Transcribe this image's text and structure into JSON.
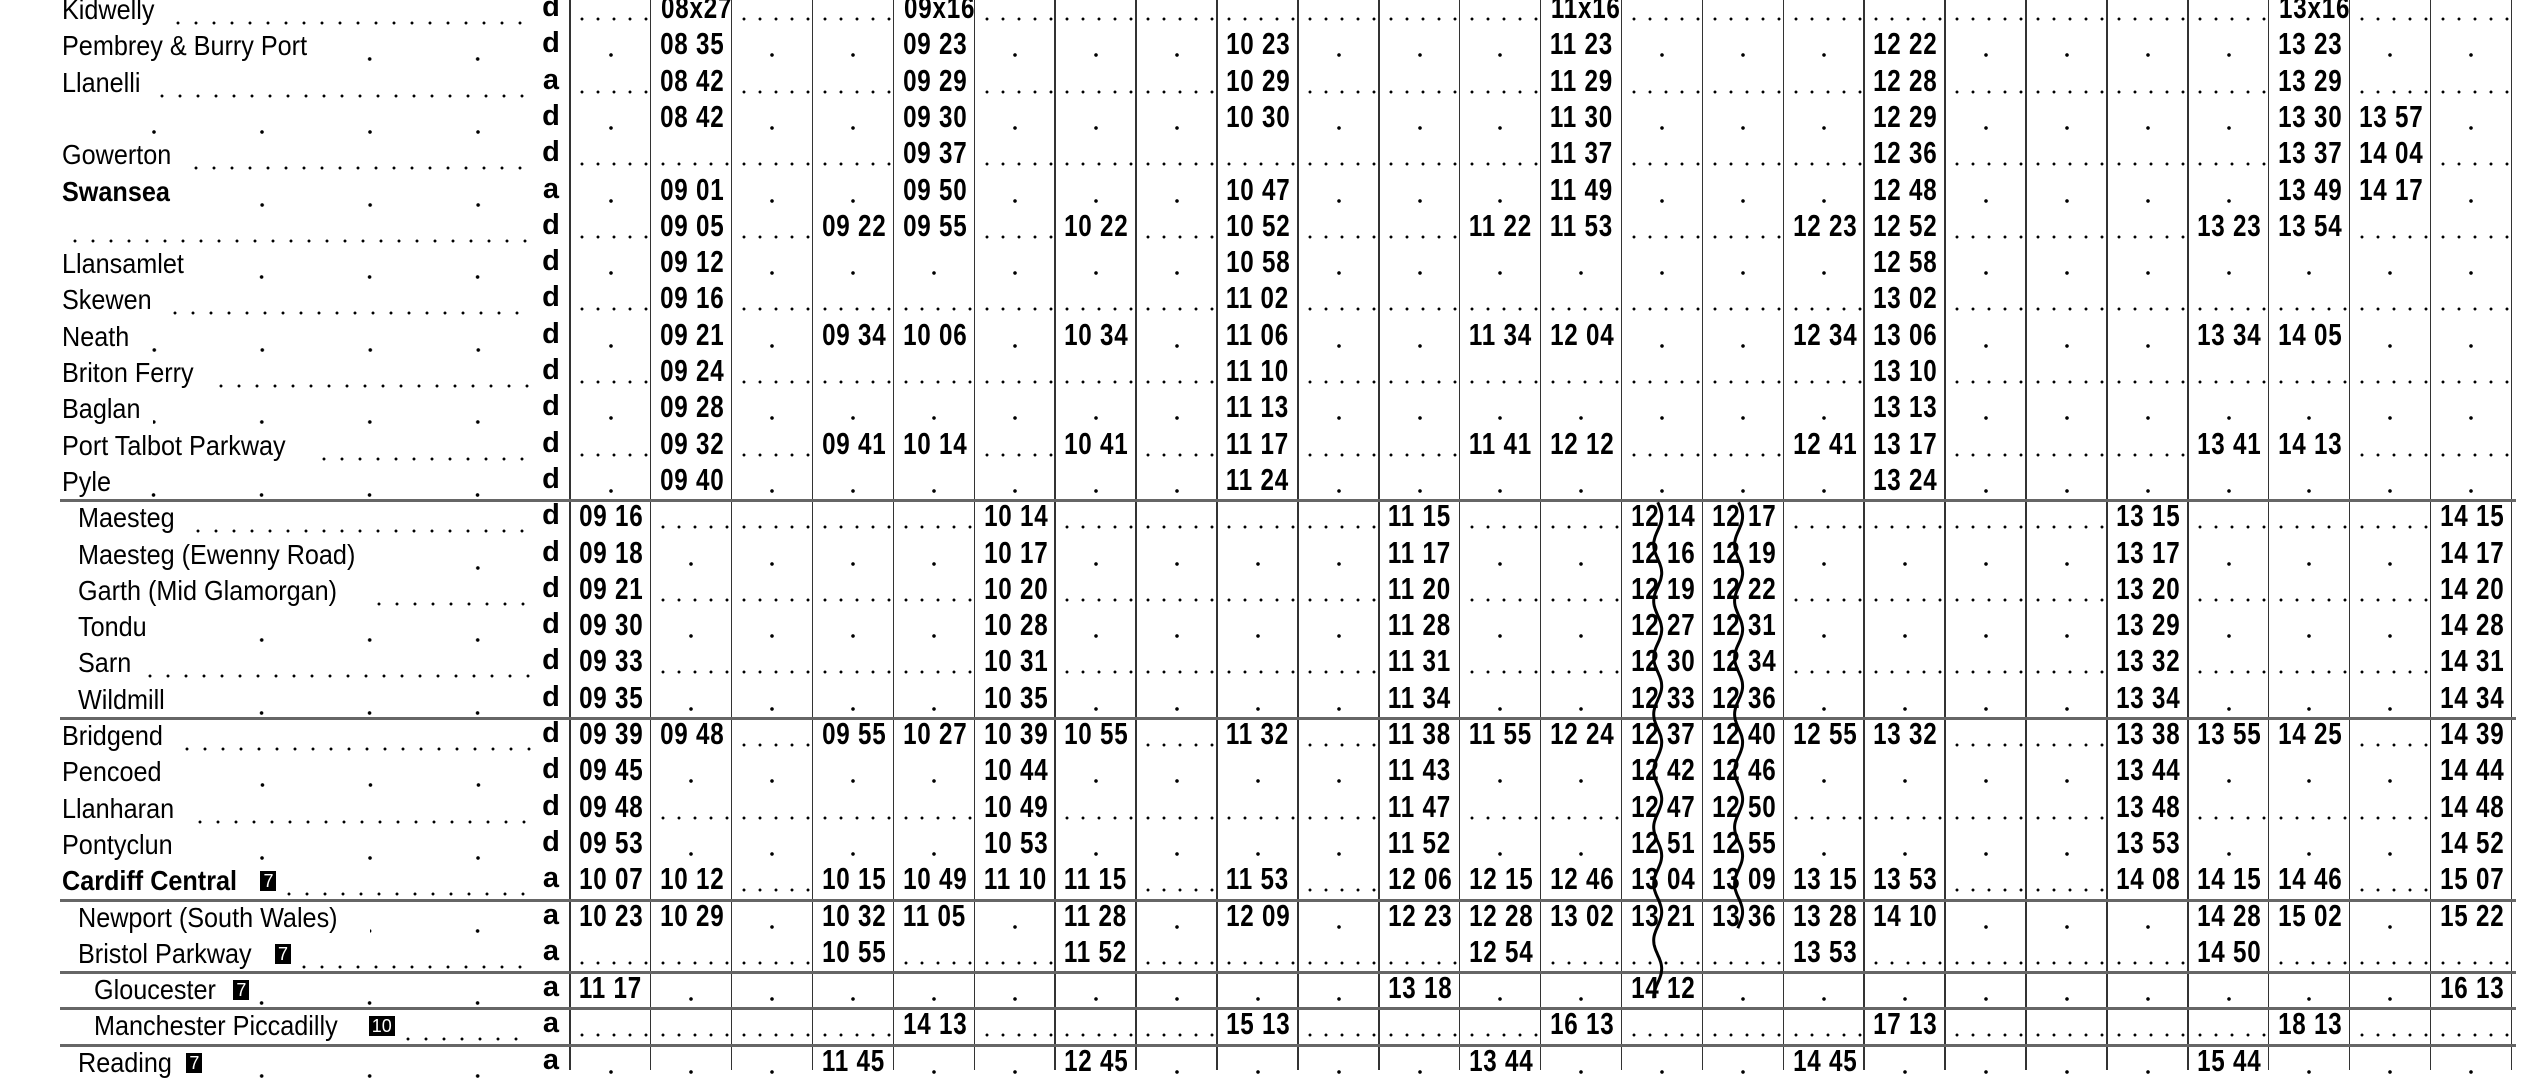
{
  "timetable": {
    "rows": [
      {
        "station": "Kidwelly",
        "ad": "d",
        "times": [
          "",
          "08x27",
          "",
          "",
          "09x16",
          "",
          "",
          "",
          "",
          "",
          "",
          "",
          "11x16",
          "",
          "",
          "",
          "",
          "",
          "",
          "",
          "",
          "13x16",
          "",
          ""
        ]
      },
      {
        "station": "Pembrey & Burry Port",
        "ad": "d",
        "times": [
          "",
          "08 35",
          "",
          "",
          "09 23",
          "",
          "",
          "",
          "10 23",
          "",
          "",
          "",
          "11 23",
          "",
          "",
          "",
          "12 22",
          "",
          "",
          "",
          "",
          "13 23",
          "",
          ""
        ]
      },
      {
        "station": "Llanelli",
        "ad": "a",
        "times": [
          "",
          "08 42",
          "",
          "",
          "09 29",
          "",
          "",
          "",
          "10 29",
          "",
          "",
          "",
          "11 29",
          "",
          "",
          "",
          "12 28",
          "",
          "",
          "",
          "",
          "13 29",
          "",
          ""
        ]
      },
      {
        "station": "",
        "ad": "d",
        "times": [
          "",
          "08 42",
          "",
          "",
          "09 30",
          "",
          "",
          "",
          "10 30",
          "",
          "",
          "",
          "11 30",
          "",
          "",
          "",
          "12 29",
          "",
          "",
          "",
          "",
          "13 30",
          "13 57",
          ""
        ]
      },
      {
        "station": "Gowerton",
        "ad": "d",
        "times": [
          "",
          "",
          "",
          "",
          "09 37",
          "",
          "",
          "",
          "",
          "",
          "",
          "",
          "11 37",
          "",
          "",
          "",
          "12 36",
          "",
          "",
          "",
          "",
          "13 37",
          "14 04",
          ""
        ]
      },
      {
        "station": "Swansea",
        "ad": "a",
        "bold": true,
        "times": [
          "",
          "09 01",
          "",
          "",
          "09 50",
          "",
          "",
          "",
          "10 47",
          "",
          "",
          "",
          "11 49",
          "",
          "",
          "",
          "12 48",
          "",
          "",
          "",
          "",
          "13 49",
          "14 17",
          ""
        ]
      },
      {
        "station": "",
        "ad": "d",
        "times": [
          "",
          "09 05",
          "",
          "09 22",
          "09 55",
          "",
          "10 22",
          "",
          "10 52",
          "",
          "",
          "11 22",
          "11 53",
          "",
          "",
          "12 23",
          "12 52",
          "",
          "",
          "",
          "13 23",
          "13 54",
          "",
          ""
        ]
      },
      {
        "station": "Llansamlet",
        "ad": "d",
        "times": [
          "",
          "09 12",
          "",
          "",
          "",
          "",
          "",
          "",
          "10 58",
          "",
          "",
          "",
          "",
          "",
          "",
          "",
          "12 58",
          "",
          "",
          "",
          "",
          "",
          "",
          ""
        ]
      },
      {
        "station": "Skewen",
        "ad": "d",
        "times": [
          "",
          "09 16",
          "",
          "",
          "",
          "",
          "",
          "",
          "11 02",
          "",
          "",
          "",
          "",
          "",
          "",
          "",
          "13 02",
          "",
          "",
          "",
          "",
          "",
          "",
          ""
        ]
      },
      {
        "station": "Neath",
        "ad": "d",
        "times": [
          "",
          "09 21",
          "",
          "09 34",
          "10 06",
          "",
          "10 34",
          "",
          "11 06",
          "",
          "",
          "11 34",
          "12 04",
          "",
          "",
          "12 34",
          "13 06",
          "",
          "",
          "",
          "13 34",
          "14 05",
          "",
          ""
        ]
      },
      {
        "station": "Briton Ferry",
        "ad": "d",
        "times": [
          "",
          "09 24",
          "",
          "",
          "",
          "",
          "",
          "",
          "11 10",
          "",
          "",
          "",
          "",
          "",
          "",
          "",
          "13 10",
          "",
          "",
          "",
          "",
          "",
          "",
          ""
        ]
      },
      {
        "station": "Baglan",
        "ad": "d",
        "times": [
          "",
          "09 28",
          "",
          "",
          "",
          "",
          "",
          "",
          "11 13",
          "",
          "",
          "",
          "",
          "",
          "",
          "",
          "13 13",
          "",
          "",
          "",
          "",
          "",
          "",
          ""
        ]
      },
      {
        "station": "Port Talbot Parkway",
        "ad": "d",
        "times": [
          "",
          "09 32",
          "",
          "09 41",
          "10 14",
          "",
          "10 41",
          "",
          "11 17",
          "",
          "",
          "11 41",
          "12 12",
          "",
          "",
          "12 41",
          "13 17",
          "",
          "",
          "",
          "13 41",
          "14 13",
          "",
          ""
        ]
      },
      {
        "station": "Pyle",
        "ad": "d",
        "times": [
          "",
          "09 40",
          "",
          "",
          "",
          "",
          "",
          "",
          "11 24",
          "",
          "",
          "",
          "",
          "",
          "",
          "",
          "13 24",
          "",
          "",
          "",
          "",
          "",
          "",
          ""
        ]
      },
      {
        "station": "Maesteg",
        "ad": "d",
        "times": [
          "09 16",
          "",
          "",
          "",
          "",
          "10 14",
          "",
          "",
          "",
          "",
          "11 15",
          "",
          "",
          "12 14",
          "12 17",
          "",
          "",
          "",
          "",
          "13 15",
          "",
          "",
          "",
          "14 15"
        ]
      },
      {
        "station": "Maesteg (Ewenny Road)",
        "ad": "d",
        "times": [
          "09 18",
          "",
          "",
          "",
          "",
          "10 17",
          "",
          "",
          "",
          "",
          "11 17",
          "",
          "",
          "12 16",
          "12 19",
          "",
          "",
          "",
          "",
          "13 17",
          "",
          "",
          "",
          "14 17"
        ]
      },
      {
        "station": "Garth (Mid Glamorgan)",
        "ad": "d",
        "times": [
          "09 21",
          "",
          "",
          "",
          "",
          "10 20",
          "",
          "",
          "",
          "",
          "11 20",
          "",
          "",
          "12 19",
          "12 22",
          "",
          "",
          "",
          "",
          "13 20",
          "",
          "",
          "",
          "14 20"
        ]
      },
      {
        "station": "Tondu",
        "ad": "d",
        "times": [
          "09 30",
          "",
          "",
          "",
          "",
          "10 28",
          "",
          "",
          "",
          "",
          "11 28",
          "",
          "",
          "12 27",
          "12 31",
          "",
          "",
          "",
          "",
          "13 29",
          "",
          "",
          "",
          "14 28"
        ]
      },
      {
        "station": "Sarn",
        "ad": "d",
        "times": [
          "09 33",
          "",
          "",
          "",
          "",
          "10 31",
          "",
          "",
          "",
          "",
          "11 31",
          "",
          "",
          "12 30",
          "12 34",
          "",
          "",
          "",
          "",
          "13 32",
          "",
          "",
          "",
          "14 31"
        ]
      },
      {
        "station": "Wildmill",
        "ad": "d",
        "times": [
          "09 35",
          "",
          "",
          "",
          "",
          "10 35",
          "",
          "",
          "",
          "",
          "11 34",
          "",
          "",
          "12 33",
          "12 36",
          "",
          "",
          "",
          "",
          "13 34",
          "",
          "",
          "",
          "14 34"
        ]
      },
      {
        "station": "Bridgend",
        "ad": "d",
        "times": [
          "09 39",
          "09 48",
          "",
          "09 55",
          "10 27",
          "10 39",
          "10 55",
          "",
          "11 32",
          "",
          "11 38",
          "11 55",
          "12 24",
          "12 37",
          "12 40",
          "12 55",
          "13 32",
          "",
          "",
          "13 38",
          "13 55",
          "14 25",
          "",
          "14 39"
        ]
      },
      {
        "station": "Pencoed",
        "ad": "d",
        "times": [
          "09 45",
          "",
          "",
          "",
          "",
          "10 44",
          "",
          "",
          "",
          "",
          "11 43",
          "",
          "",
          "12 42",
          "12 46",
          "",
          "",
          "",
          "",
          "13 44",
          "",
          "",
          "",
          "14 44"
        ]
      },
      {
        "station": "Llanharan",
        "ad": "d",
        "times": [
          "09 48",
          "",
          "",
          "",
          "",
          "10 49",
          "",
          "",
          "",
          "",
          "11 47",
          "",
          "",
          "12 47",
          "12 50",
          "",
          "",
          "",
          "",
          "13 48",
          "",
          "",
          "",
          "14 48"
        ]
      },
      {
        "station": "Pontyclun",
        "ad": "d",
        "times": [
          "09 53",
          "",
          "",
          "",
          "",
          "10 53",
          "",
          "",
          "",
          "",
          "11 52",
          "",
          "",
          "12 51",
          "12 55",
          "",
          "",
          "",
          "",
          "13 53",
          "",
          "",
          "",
          "14 52"
        ]
      },
      {
        "station": "Cardiff Central",
        "ad": "a",
        "bold": true,
        "badge": "7",
        "times": [
          "10 07",
          "10 12",
          "",
          "10 15",
          "10 49",
          "11 10",
          "11 15",
          "",
          "11 53",
          "",
          "12 06",
          "12 15",
          "12 46",
          "13 04",
          "13 09",
          "13 15",
          "13 53",
          "",
          "",
          "14 08",
          "14 15",
          "14 46",
          "",
          "15 07"
        ]
      },
      {
        "station": "Newport (South Wales)",
        "ad": "a",
        "times": [
          "10 23",
          "10 29",
          "",
          "10 32",
          "11 05",
          "",
          "11 28",
          "",
          "12 09",
          "",
          "12 23",
          "12 28",
          "13 02",
          "13 21",
          "13 36",
          "13 28",
          "14 10",
          "",
          "",
          "",
          "14 28",
          "15 02",
          "",
          "15 22"
        ]
      },
      {
        "station": "Bristol Parkway",
        "ad": "a",
        "badge": "7",
        "times": [
          "",
          "",
          "",
          "10 55",
          "",
          "",
          "11 52",
          "",
          "",
          "",
          "",
          "12 54",
          "",
          "",
          "",
          "13 53",
          "",
          "",
          "",
          "",
          "14 50",
          "",
          "",
          ""
        ]
      },
      {
        "station": "Gloucester",
        "ad": "a",
        "badge": "7",
        "times": [
          "11 17",
          "",
          "",
          "",
          "",
          "",
          "",
          "",
          "",
          "",
          "13 18",
          "",
          "",
          "14 12",
          "",
          "",
          "",
          "",
          "",
          "",
          "",
          "",
          "",
          "16 13"
        ]
      },
      {
        "station": "Manchester Piccadilly",
        "ad": "a",
        "badge": "10",
        "times": [
          "",
          "",
          "",
          "",
          "14 13",
          "",
          "",
          "",
          "15 13",
          "",
          "",
          "",
          "16 13",
          "",
          "",
          "",
          "17 13",
          "",
          "",
          "",
          "",
          "18 13",
          "",
          ""
        ]
      },
      {
        "station": "Reading",
        "ad": "a",
        "badge": "7",
        "times": [
          "",
          "",
          "",
          "11 45",
          "",
          "",
          "12 45",
          "",
          "",
          "",
          "",
          "13 44",
          "",
          "",
          "",
          "14 45",
          "",
          "",
          "",
          "",
          "15 44",
          "",
          "",
          ""
        ]
      }
    ]
  }
}
